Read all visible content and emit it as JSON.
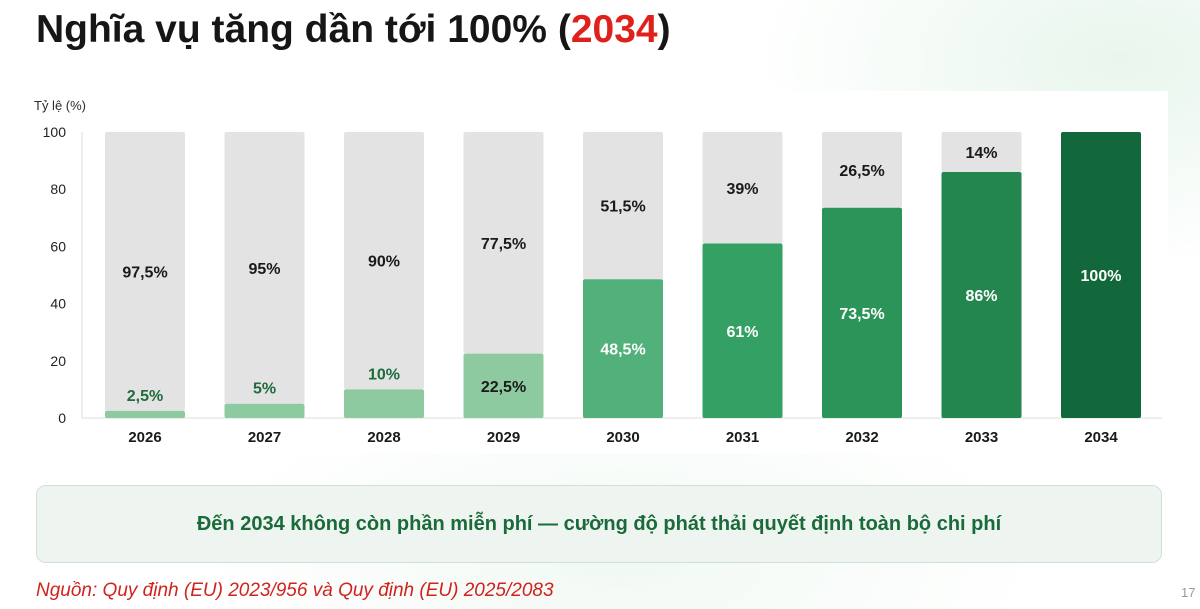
{
  "slide": {
    "title_prefix": "Nghĩa vụ tăng dần tới 100% (",
    "title_highlight": "2034",
    "title_suffix": ")",
    "note": "Đến 2034 không còn phần miễn phí — cường độ phát thải quyết định toàn bộ chi phí",
    "source": "Nguồn: Quy định (EU) 2023/956 và Quy định (EU) 2025/2083",
    "page_number": "17"
  },
  "colors": {
    "title_highlight": "#e0201b",
    "remainder_bar": "#e3e3e3",
    "note_text": "#1b6a3a",
    "source_text": "#d0231d"
  },
  "chart_data": {
    "type": "bar",
    "stacked": true,
    "ylabel": "Tỷ lệ (%)",
    "ylim": [
      0,
      100
    ],
    "yticks": [
      "0",
      "20",
      "40",
      "60",
      "80",
      "100"
    ],
    "grid": false,
    "legend": "none",
    "categories": [
      "2026",
      "2027",
      "2028",
      "2029",
      "2030",
      "2031",
      "2032",
      "2033",
      "2034"
    ],
    "series": [
      {
        "values": [
          2.5,
          5,
          10,
          22.5,
          48.5,
          61,
          73.5,
          86,
          100
        ],
        "labels": [
          "2,5%",
          "5%",
          "10%",
          "22,5%",
          "48,5%",
          "61%",
          "73,5%",
          "86%",
          "100%"
        ],
        "colors": [
          "#8ecaa0",
          "#8ecaa0",
          "#8ecaa0",
          "#8ecaa0",
          "#52b07a",
          "#34a063",
          "#2a9459",
          "#23864e",
          "#12683a"
        ]
      },
      {
        "values": [
          97.5,
          95,
          90,
          77.5,
          51.5,
          39,
          26.5,
          14,
          0
        ],
        "labels": [
          "97,5%",
          "95%",
          "90%",
          "77,5%",
          "51,5%",
          "39%",
          "26,5%",
          "14%",
          ""
        ]
      }
    ]
  }
}
